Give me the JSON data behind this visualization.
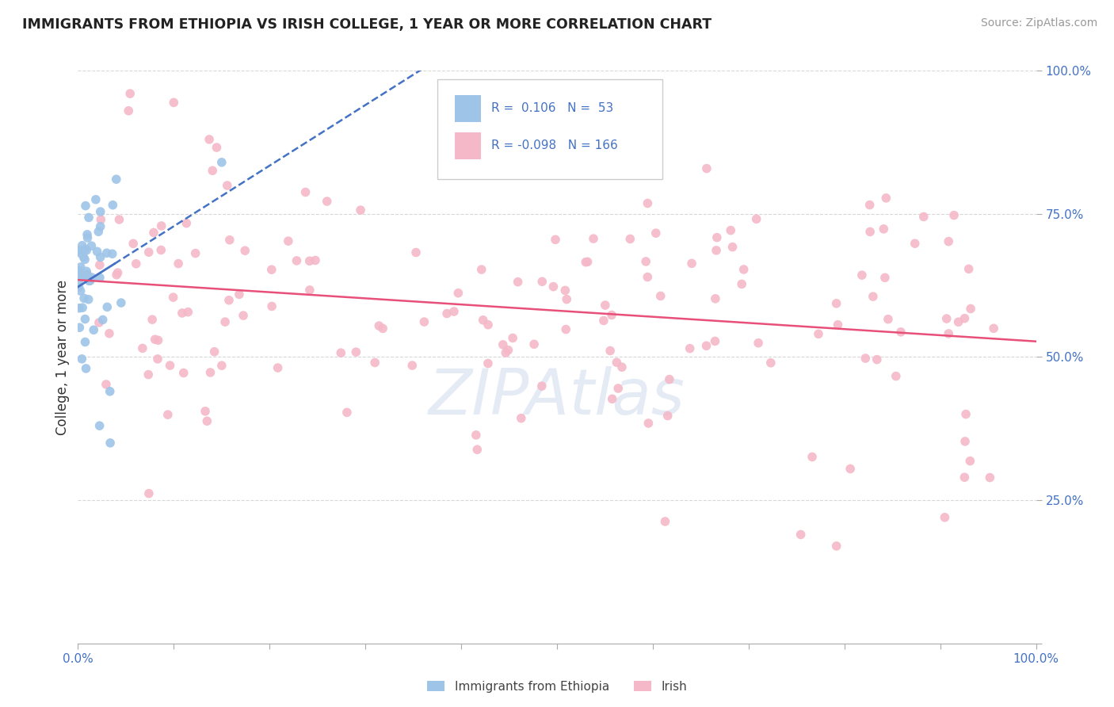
{
  "title": "IMMIGRANTS FROM ETHIOPIA VS IRISH COLLEGE, 1 YEAR OR MORE CORRELATION CHART",
  "source": "Source: ZipAtlas.com",
  "ylabel": "College, 1 year or more",
  "xlim": [
    0.0,
    1.0
  ],
  "ylim": [
    0.0,
    1.0
  ],
  "blue_color": "#9ec4e8",
  "pink_color": "#f4b8c8",
  "blue_line_color": "#4472c4",
  "pink_line_color": "#e8507a",
  "text_color": "#4472c4",
  "background_color": "#ffffff",
  "grid_color": "#d8d8d8",
  "watermark_text": "ZIPAtlas",
  "blue_R": 0.106,
  "blue_N": 53,
  "pink_R": -0.098,
  "pink_N": 166
}
